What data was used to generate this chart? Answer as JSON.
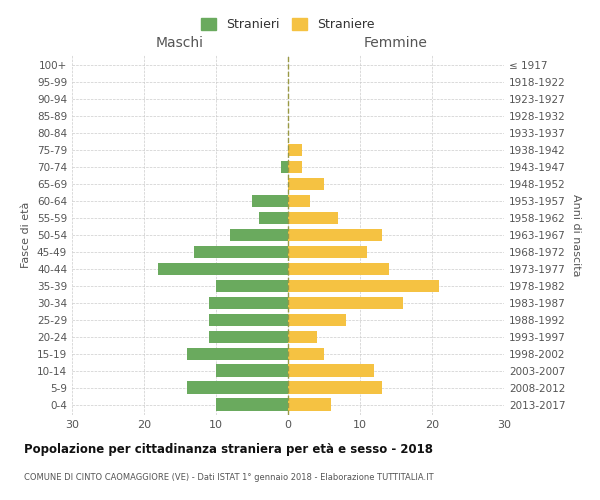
{
  "age_groups": [
    "0-4",
    "5-9",
    "10-14",
    "15-19",
    "20-24",
    "25-29",
    "30-34",
    "35-39",
    "40-44",
    "45-49",
    "50-54",
    "55-59",
    "60-64",
    "65-69",
    "70-74",
    "75-79",
    "80-84",
    "85-89",
    "90-94",
    "95-99",
    "100+"
  ],
  "birth_years": [
    "2013-2017",
    "2008-2012",
    "2003-2007",
    "1998-2002",
    "1993-1997",
    "1988-1992",
    "1983-1987",
    "1978-1982",
    "1973-1977",
    "1968-1972",
    "1963-1967",
    "1958-1962",
    "1953-1957",
    "1948-1952",
    "1943-1947",
    "1938-1942",
    "1933-1937",
    "1928-1932",
    "1923-1927",
    "1918-1922",
    "≤ 1917"
  ],
  "maschi": [
    10,
    14,
    10,
    14,
    11,
    11,
    11,
    10,
    18,
    13,
    8,
    4,
    5,
    0,
    1,
    0,
    0,
    0,
    0,
    0,
    0
  ],
  "femmine": [
    6,
    13,
    12,
    5,
    4,
    8,
    16,
    21,
    14,
    11,
    13,
    7,
    3,
    5,
    2,
    2,
    0,
    0,
    0,
    0,
    0
  ],
  "maschi_color": "#6aaa5e",
  "femmine_color": "#f5c242",
  "title": "Popolazione per cittadinanza straniera per età e sesso - 2018",
  "subtitle": "COMUNE DI CINTO CAOMAGGIORE (VE) - Dati ISTAT 1° gennaio 2018 - Elaborazione TUTTITALIA.IT",
  "xlabel_left": "Maschi",
  "xlabel_right": "Femmine",
  "ylabel_left": "Fasce di età",
  "ylabel_right": "Anni di nascita",
  "legend_stranieri": "Stranieri",
  "legend_straniere": "Straniere",
  "xlim": 30,
  "background_color": "#ffffff",
  "grid_color": "#cccccc"
}
